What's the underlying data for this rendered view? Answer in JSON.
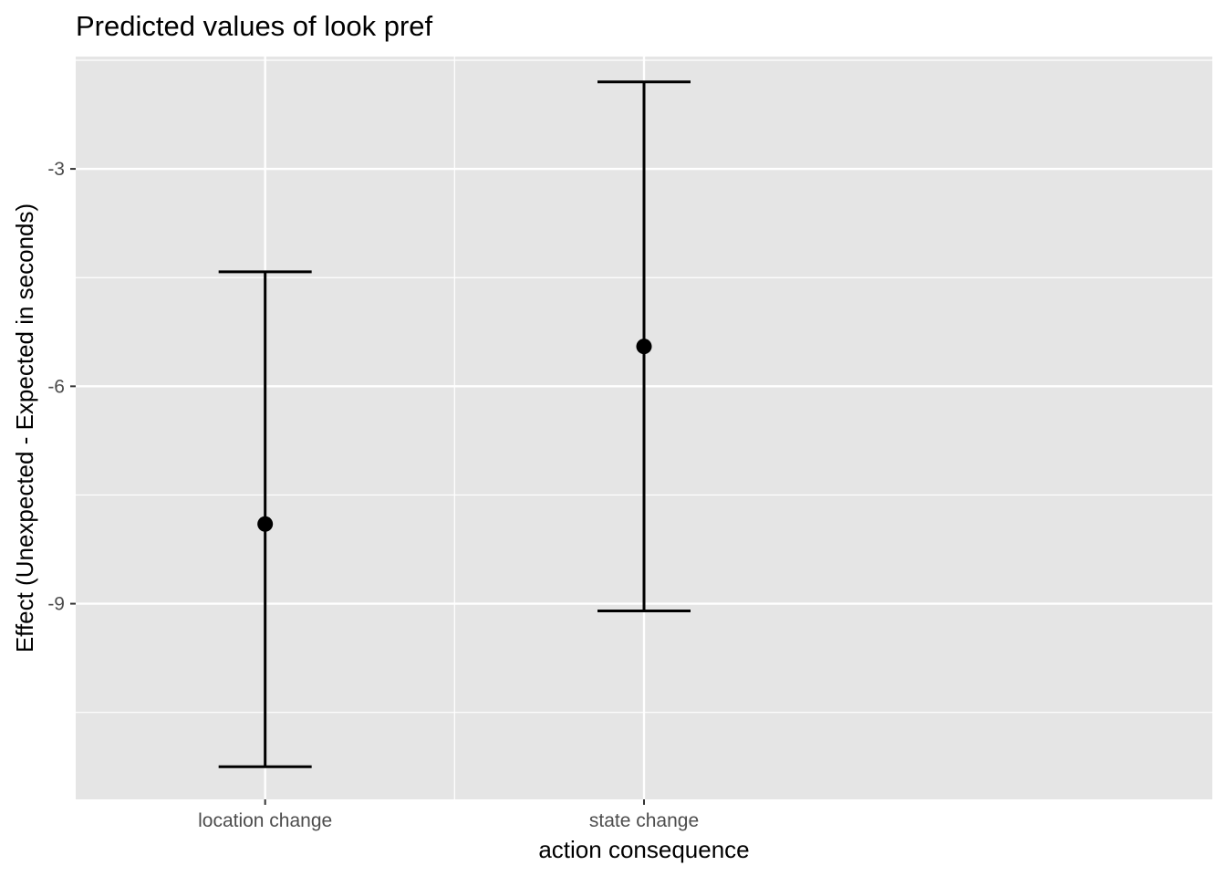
{
  "chart_data": {
    "type": "errorbar",
    "title": "Predicted values of look pref",
    "xlabel": "action consequence",
    "ylabel": "Effect (Unexpected - Expected in seconds)",
    "categories": [
      "location change",
      "state change"
    ],
    "estimates": [
      -7.9,
      -5.45
    ],
    "ci_low": [
      -11.25,
      -9.1
    ],
    "ci_high": [
      -4.42,
      -1.8
    ],
    "ylim": [
      -11.7,
      -1.45
    ],
    "yticks": [
      -9,
      -6,
      -3
    ],
    "ytick_labels": [
      "-9",
      "-6",
      "-3"
    ],
    "grid": true,
    "colors": {
      "panel": "#e5e5e5",
      "grid": "#ffffff",
      "marks": "#000000"
    }
  }
}
